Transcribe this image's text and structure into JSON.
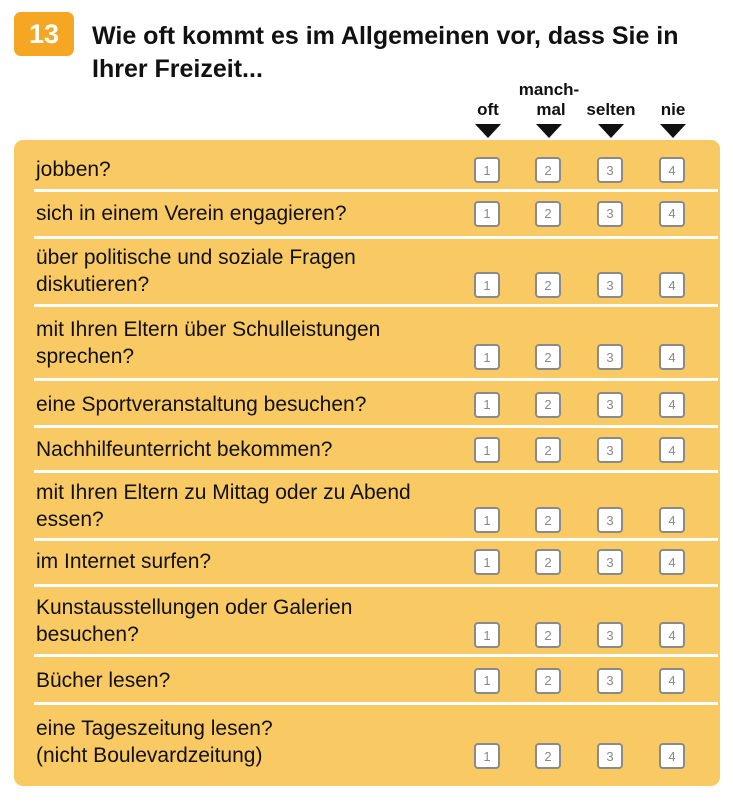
{
  "question": {
    "number": "13",
    "title": "Wie oft kommt es im Allgemeinen vor, dass Sie in Ihrer Freizeit..."
  },
  "columns": [
    {
      "label": "oft"
    },
    {
      "label": "manch-\nmal"
    },
    {
      "label": "selten"
    },
    {
      "label": "nie"
    }
  ],
  "checkbox_values": [
    "1",
    "2",
    "3",
    "4"
  ],
  "items": [
    {
      "label": "jobben?"
    },
    {
      "label": "sich in einem Verein engagieren?"
    },
    {
      "label": "über politische und soziale Fragen\ndiskutieren?"
    },
    {
      "label": "mit Ihren Eltern über Schulleistungen\nsprechen?"
    },
    {
      "label": "eine Sportveranstaltung besuchen?"
    },
    {
      "label": "Nachhilfeunterricht bekommen?"
    },
    {
      "label": "mit Ihren Eltern zu Mittag oder zu Abend\nessen?"
    },
    {
      "label": "im Internet surfen?"
    },
    {
      "label": "Kunstausstellungen oder Galerien\nbesuchen?"
    },
    {
      "label": "Bücher lesen?"
    },
    {
      "label": "eine Tageszeitung lesen?\n(nicht Boulevardzeitung)"
    }
  ],
  "colors": {
    "badge": "#f5a623",
    "panel": "#f9c964",
    "separator": "#ffffff",
    "checkbox_border": "#8a8a8a"
  }
}
